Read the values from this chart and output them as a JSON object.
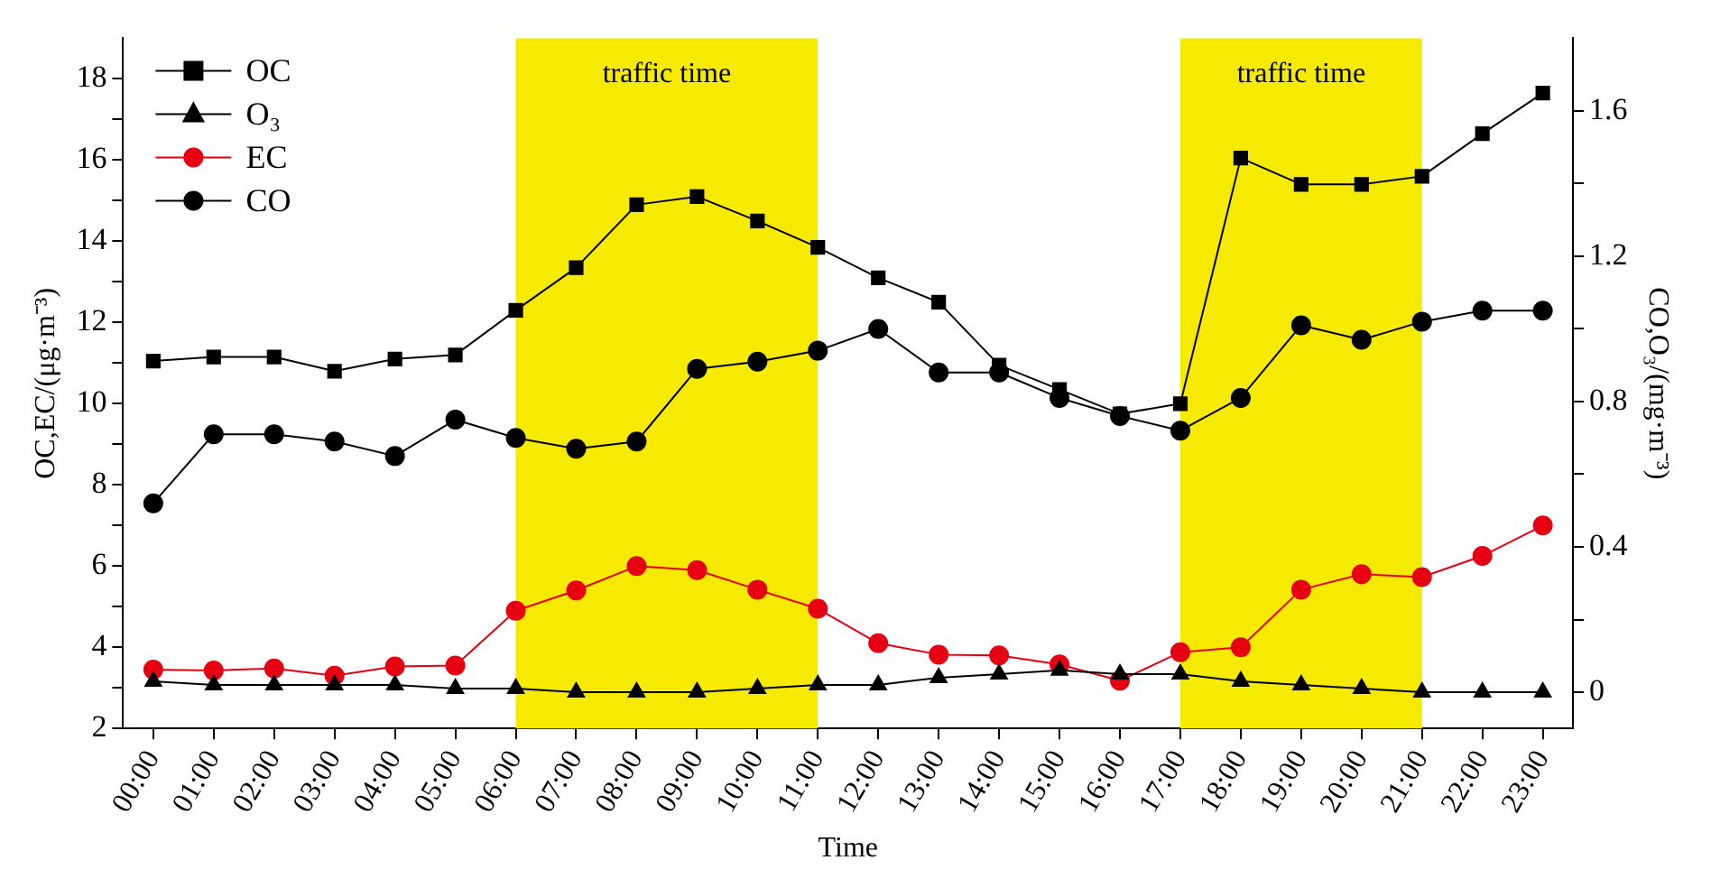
{
  "chart_data": {
    "type": "line",
    "xlabel": "Time",
    "ylabel": "OC,EC/(μg·m⁻³)",
    "y2label": "CO,O₃/(mg·m⁻³)",
    "categories": [
      "00:00",
      "01:00",
      "02:00",
      "03:00",
      "04:00",
      "05:00",
      "06:00",
      "07:00",
      "08:00",
      "09:00",
      "10:00",
      "11:00",
      "12:00",
      "13:00",
      "14:00",
      "15:00",
      "16:00",
      "17:00",
      "18:00",
      "19:00",
      "20:00",
      "21:00",
      "22:00",
      "23:00"
    ],
    "ylim": [
      2,
      19
    ],
    "yticks": [
      2,
      {
        "value": 3,
        "label": null
      },
      4,
      {
        "value": 5,
        "label": null
      },
      6,
      {
        "value": 7,
        "label": null
      },
      8,
      {
        "value": 9,
        "label": null
      },
      10,
      {
        "value": 11,
        "label": null
      },
      12,
      {
        "value": 13,
        "label": null
      },
      14,
      {
        "value": 15,
        "label": null
      },
      16,
      {
        "value": 17,
        "label": null
      },
      18
    ],
    "y2lim": [
      -0.1,
      1.8
    ],
    "y2ticks": [
      0,
      {
        "value": 0.2,
        "label": null
      },
      0.4,
      {
        "value": 0.6,
        "label": null
      },
      0.8,
      {
        "value": 1.0,
        "label": null
      },
      1.2,
      {
        "value": 1.4,
        "label": null
      },
      1.6
    ],
    "grid": false,
    "legend": "top left",
    "line_style": "solid",
    "bands": [
      {
        "axis": "x",
        "from": "06:00",
        "to": "11:00",
        "label": "traffic time",
        "color": "#f5ea00"
      },
      {
        "axis": "x",
        "from": "17:00",
        "to": "21:00",
        "label": "traffic time",
        "color": "#f5ea00"
      }
    ],
    "series": [
      {
        "name": "OC",
        "color": "#000000",
        "marker": "square",
        "values": [
          11.05,
          11.15,
          11.15,
          10.8,
          11.1,
          11.2,
          12.3,
          13.35,
          14.9,
          15.1,
          14.5,
          13.85,
          13.1,
          12.5,
          10.95,
          10.35,
          9.75,
          10.0,
          16.05,
          15.4,
          15.4,
          15.6,
          16.65,
          17.65
        ]
      },
      {
        "name": "O₃",
        "color": "#000000",
        "marker": "triangle",
        "axis": "y2",
        "values": [
          0.03,
          0.02,
          0.02,
          0.02,
          0.02,
          0.01,
          0.01,
          0.0,
          0.0,
          0.0,
          0.01,
          0.02,
          0.02,
          0.04,
          0.05,
          0.06,
          0.05,
          0.05,
          0.03,
          0.02,
          0.01,
          0.0,
          0.0,
          0.0
        ]
      },
      {
        "name": "EC",
        "color": "#e60012",
        "marker": "circle",
        "values": [
          3.45,
          3.43,
          3.48,
          3.3,
          3.53,
          3.55,
          4.9,
          5.4,
          6.0,
          5.9,
          5.42,
          4.95,
          4.1,
          3.82,
          3.8,
          3.58,
          3.18,
          3.88,
          4.0,
          5.42,
          5.8,
          5.73,
          6.25,
          7.0
        ]
      },
      {
        "name": "CO",
        "color": "#000000",
        "marker": "circle",
        "axis": "y2",
        "values": [
          0.52,
          0.71,
          0.71,
          0.69,
          0.65,
          0.75,
          0.7,
          0.67,
          0.69,
          0.89,
          0.91,
          0.94,
          1.0,
          0.88,
          0.88,
          0.81,
          0.76,
          0.72,
          0.81,
          1.01,
          0.97,
          1.02,
          1.05,
          1.05
        ]
      }
    ]
  }
}
